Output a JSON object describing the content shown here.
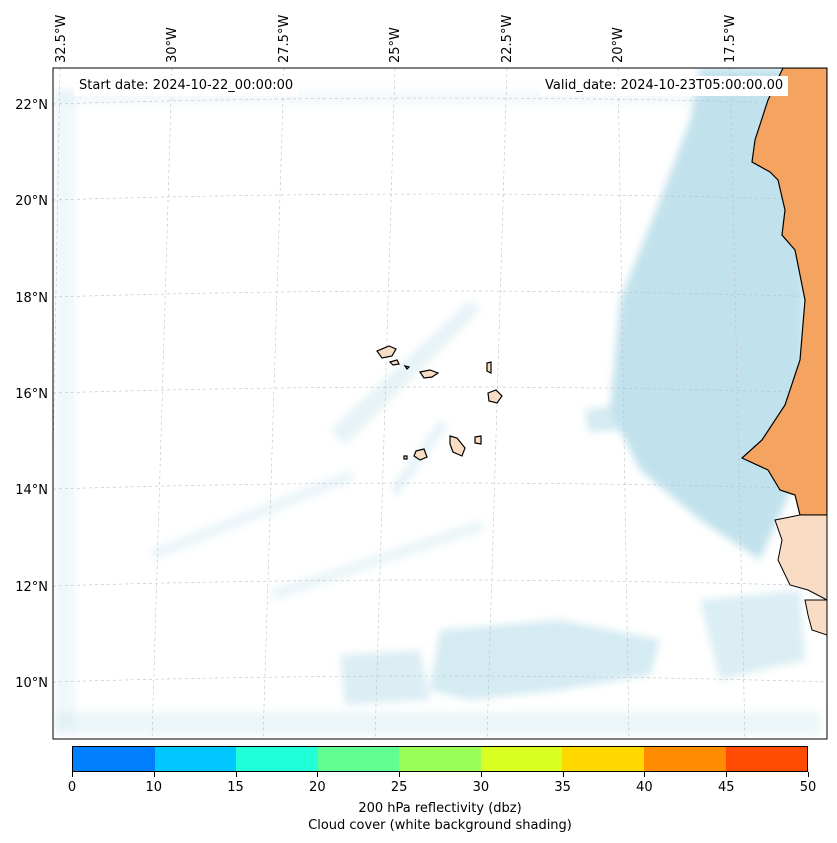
{
  "map": {
    "start_label": "Start date: 2024-10-22_00:00:00",
    "valid_label": "Valid_date: 2024-10-23T05:00:00.00",
    "lon_labels": [
      "32.5°W",
      "30°W",
      "27.5°W",
      "25°W",
      "22.5°W",
      "20°W",
      "17.5°W"
    ],
    "lat_labels": [
      "22°N",
      "20°N",
      "18°N",
      "16°N",
      "14°N",
      "12°N",
      "10°N"
    ],
    "land_color": "#f4a460",
    "cloud_color": "#add8e6"
  },
  "colorbar": {
    "ticks": [
      "0",
      "10",
      "15",
      "20",
      "25",
      "30",
      "35",
      "40",
      "45",
      "50"
    ],
    "colors": [
      "#0080ff",
      "#00c8ff",
      "#20ffd8",
      "#60ff90",
      "#98ff58",
      "#d8ff20",
      "#ffd800",
      "#ff8c00",
      "#ff4c00"
    ],
    "title_line1": "200 hPa reflectivity (dbz)",
    "title_line2": "Cloud cover (white background shading)"
  }
}
